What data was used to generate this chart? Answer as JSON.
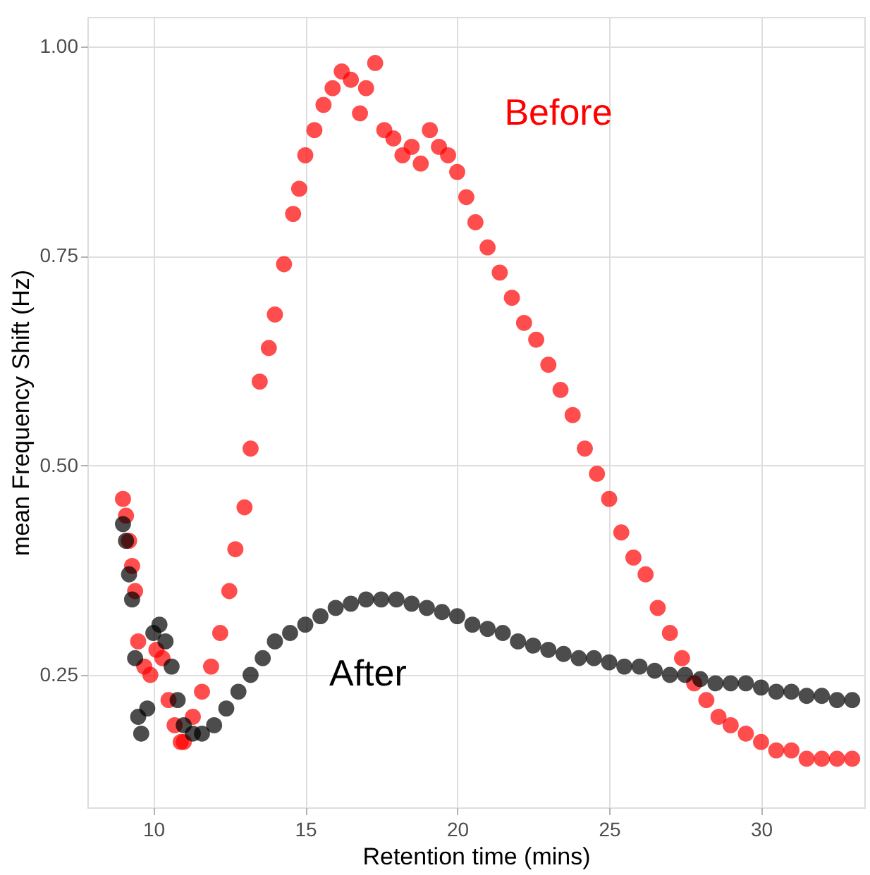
{
  "chart_data": {
    "type": "scatter",
    "xlabel": "Retention time (mins)",
    "ylabel": "mean Frequency Shift (Hz)",
    "xlim": [
      7.83,
      33.4
    ],
    "xticks": [
      10,
      15,
      20,
      25,
      30
    ],
    "ylim": [
      0.092,
      1.035
    ],
    "yticks": [
      0.25,
      {
        "value": 0.5,
        "label": "0.50"
      },
      0.75,
      {
        "value": 1.0,
        "label": "1.00"
      }
    ],
    "grid": true,
    "marker": "circle",
    "series": [
      {
        "name": "Before",
        "color": "#ff0000",
        "x": [
          9.0,
          9.1,
          9.2,
          9.3,
          9.4,
          9.5,
          9.7,
          9.9,
          10.1,
          10.3,
          10.5,
          10.7,
          10.9,
          11.0,
          11.3,
          11.6,
          11.9,
          12.2,
          12.5,
          12.7,
          13.0,
          13.2,
          13.5,
          13.8,
          14.0,
          14.3,
          14.6,
          14.8,
          15.0,
          15.3,
          15.6,
          15.9,
          16.2,
          16.5,
          16.8,
          17.0,
          17.3,
          17.6,
          17.9,
          18.2,
          18.5,
          18.8,
          19.1,
          19.4,
          19.7,
          20.0,
          20.3,
          20.6,
          21.0,
          21.4,
          21.8,
          22.2,
          22.6,
          23.0,
          23.4,
          23.8,
          24.2,
          24.6,
          25.0,
          25.4,
          25.8,
          26.2,
          26.6,
          27.0,
          27.4,
          27.8,
          28.2,
          28.6,
          29.0,
          29.5,
          30.0,
          30.5,
          31.0,
          31.5,
          32.0,
          32.5,
          33.0
        ],
        "values": [
          0.46,
          0.44,
          0.41,
          0.38,
          0.35,
          0.29,
          0.26,
          0.25,
          0.28,
          0.27,
          0.22,
          0.19,
          0.17,
          0.17,
          0.2,
          0.23,
          0.26,
          0.3,
          0.35,
          0.4,
          0.45,
          0.52,
          0.6,
          0.64,
          0.68,
          0.74,
          0.8,
          0.83,
          0.87,
          0.9,
          0.93,
          0.95,
          0.97,
          0.96,
          0.92,
          0.95,
          0.98,
          0.9,
          0.89,
          0.87,
          0.88,
          0.86,
          0.9,
          0.88,
          0.87,
          0.85,
          0.82,
          0.79,
          0.76,
          0.73,
          0.7,
          0.67,
          0.65,
          0.62,
          0.59,
          0.56,
          0.52,
          0.49,
          0.46,
          0.42,
          0.39,
          0.37,
          0.33,
          0.3,
          0.27,
          0.24,
          0.22,
          0.2,
          0.19,
          0.18,
          0.17,
          0.16,
          0.16,
          0.15,
          0.15,
          0.15,
          0.15
        ]
      },
      {
        "name": "After",
        "color": "#000000",
        "x": [
          9.0,
          9.1,
          9.2,
          9.3,
          9.4,
          9.5,
          9.6,
          9.8,
          10.0,
          10.2,
          10.4,
          10.6,
          10.8,
          11.0,
          11.3,
          11.6,
          12.0,
          12.4,
          12.8,
          13.2,
          13.6,
          14.0,
          14.5,
          15.0,
          15.5,
          16.0,
          16.5,
          17.0,
          17.5,
          18.0,
          18.5,
          19.0,
          19.5,
          20.0,
          20.5,
          21.0,
          21.5,
          22.0,
          22.5,
          23.0,
          23.5,
          24.0,
          24.5,
          25.0,
          25.5,
          26.0,
          26.5,
          27.0,
          27.5,
          28.0,
          28.5,
          29.0,
          29.5,
          30.0,
          30.5,
          31.0,
          31.5,
          32.0,
          32.5,
          33.0
        ],
        "values": [
          0.43,
          0.41,
          0.37,
          0.34,
          0.27,
          0.2,
          0.18,
          0.21,
          0.3,
          0.31,
          0.29,
          0.26,
          0.22,
          0.19,
          0.18,
          0.18,
          0.19,
          0.21,
          0.23,
          0.25,
          0.27,
          0.29,
          0.3,
          0.31,
          0.32,
          0.33,
          0.335,
          0.34,
          0.34,
          0.34,
          0.335,
          0.33,
          0.325,
          0.32,
          0.31,
          0.305,
          0.3,
          0.29,
          0.285,
          0.28,
          0.275,
          0.27,
          0.27,
          0.265,
          0.26,
          0.26,
          0.255,
          0.25,
          0.25,
          0.245,
          0.24,
          0.24,
          0.24,
          0.235,
          0.23,
          0.23,
          0.225,
          0.225,
          0.22,
          0.22
        ]
      }
    ]
  }
}
